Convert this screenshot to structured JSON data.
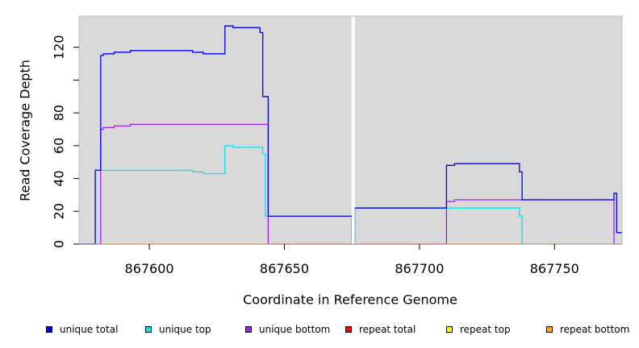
{
  "chart_data": {
    "type": "line",
    "xlabel": "Coordinate in Reference Genome",
    "ylabel": "Read Coverage Depth",
    "xlim": [
      867574,
      867775
    ],
    "ylim": [
      0,
      139
    ],
    "x_ticks": [
      867600,
      867650,
      867700,
      867750
    ],
    "x_tick_labels": [
      "867600",
      "867650",
      "867700",
      "867750"
    ],
    "y_ticks": [
      0,
      20,
      40,
      60,
      80,
      100,
      120
    ],
    "y_tick_labels": [
      "0",
      "20",
      "40",
      "60",
      "80",
      "",
      "120"
    ],
    "grid": false,
    "background": "#d9d9d9",
    "gap_marker_x": 867675.5,
    "legend_position": "bottom",
    "series": [
      {
        "name": "unique total",
        "color": "#0000ee",
        "points": [
          [
            867574,
            0
          ],
          [
            867580,
            0
          ],
          [
            867580,
            45
          ],
          [
            867582,
            45
          ],
          [
            867582,
            115
          ],
          [
            867583,
            115
          ],
          [
            867583,
            116
          ],
          [
            867587,
            116
          ],
          [
            867587,
            117
          ],
          [
            867593,
            117
          ],
          [
            867593,
            118
          ],
          [
            867616,
            118
          ],
          [
            867616,
            117
          ],
          [
            867620,
            117
          ],
          [
            867620,
            116
          ],
          [
            867628,
            116
          ],
          [
            867628,
            133
          ],
          [
            867631,
            133
          ],
          [
            867631,
            132
          ],
          [
            867641,
            132
          ],
          [
            867641,
            129
          ],
          [
            867642,
            129
          ],
          [
            867642,
            90
          ],
          [
            867644,
            90
          ],
          [
            867644,
            17
          ],
          [
            867675,
            17
          ],
          [
            867675,
            0
          ],
          [
            867676,
            0
          ],
          [
            867676,
            22
          ],
          [
            867710,
            22
          ],
          [
            867710,
            48
          ],
          [
            867713,
            48
          ],
          [
            867713,
            49
          ],
          [
            867737,
            49
          ],
          [
            867737,
            44
          ],
          [
            867738,
            44
          ],
          [
            867738,
            27
          ],
          [
            867772,
            27
          ],
          [
            867772,
            31
          ],
          [
            867773,
            31
          ],
          [
            867773,
            7
          ],
          [
            867775,
            7
          ]
        ]
      },
      {
        "name": "unique top",
        "color": "#00e5ee",
        "points": [
          [
            867574,
            0
          ],
          [
            867580,
            0
          ],
          [
            867580,
            45
          ],
          [
            867616,
            45
          ],
          [
            867616,
            44
          ],
          [
            867620,
            44
          ],
          [
            867620,
            43
          ],
          [
            867628,
            43
          ],
          [
            867628,
            60
          ],
          [
            867631,
            60
          ],
          [
            867631,
            59
          ],
          [
            867642,
            59
          ],
          [
            867642,
            55
          ],
          [
            867643,
            55
          ],
          [
            867643,
            17
          ],
          [
            867675,
            17
          ],
          [
            867675,
            0
          ],
          [
            867676,
            0
          ],
          [
            867676,
            22
          ],
          [
            867737,
            22
          ],
          [
            867737,
            17
          ],
          [
            867738,
            17
          ],
          [
            867738,
            0
          ],
          [
            867775,
            0
          ]
        ]
      },
      {
        "name": "unique bottom",
        "color": "#a020f0",
        "points": [
          [
            867574,
            0
          ],
          [
            867582,
            0
          ],
          [
            867582,
            70
          ],
          [
            867583,
            70
          ],
          [
            867583,
            71
          ],
          [
            867587,
            71
          ],
          [
            867587,
            72
          ],
          [
            867593,
            72
          ],
          [
            867593,
            73
          ],
          [
            867644,
            73
          ],
          [
            867644,
            0
          ],
          [
            867710,
            0
          ],
          [
            867710,
            26
          ],
          [
            867713,
            26
          ],
          [
            867713,
            27
          ],
          [
            867772,
            27
          ],
          [
            867772,
            0
          ],
          [
            867775,
            0
          ]
        ]
      },
      {
        "name": "repeat total",
        "color": "#ff0000",
        "points": [
          [
            867574,
            0
          ],
          [
            867775,
            0
          ]
        ]
      },
      {
        "name": "repeat top",
        "color": "#ffff00",
        "points": [
          [
            867574,
            0
          ],
          [
            867775,
            0
          ]
        ]
      },
      {
        "name": "repeat bottom",
        "color": "#ffa500",
        "points": [
          [
            867574,
            0
          ],
          [
            867738,
            0
          ]
        ]
      }
    ]
  },
  "legend": {
    "items": [
      {
        "label": "unique total",
        "color": "#0000ee"
      },
      {
        "label": "unique top",
        "color": "#00e5ee"
      },
      {
        "label": "unique bottom",
        "color": "#a020f0"
      },
      {
        "label": "repeat total",
        "color": "#ff0000"
      },
      {
        "label": "repeat top",
        "color": "#ffff00"
      },
      {
        "label": "repeat bottom",
        "color": "#ffa500"
      }
    ]
  }
}
